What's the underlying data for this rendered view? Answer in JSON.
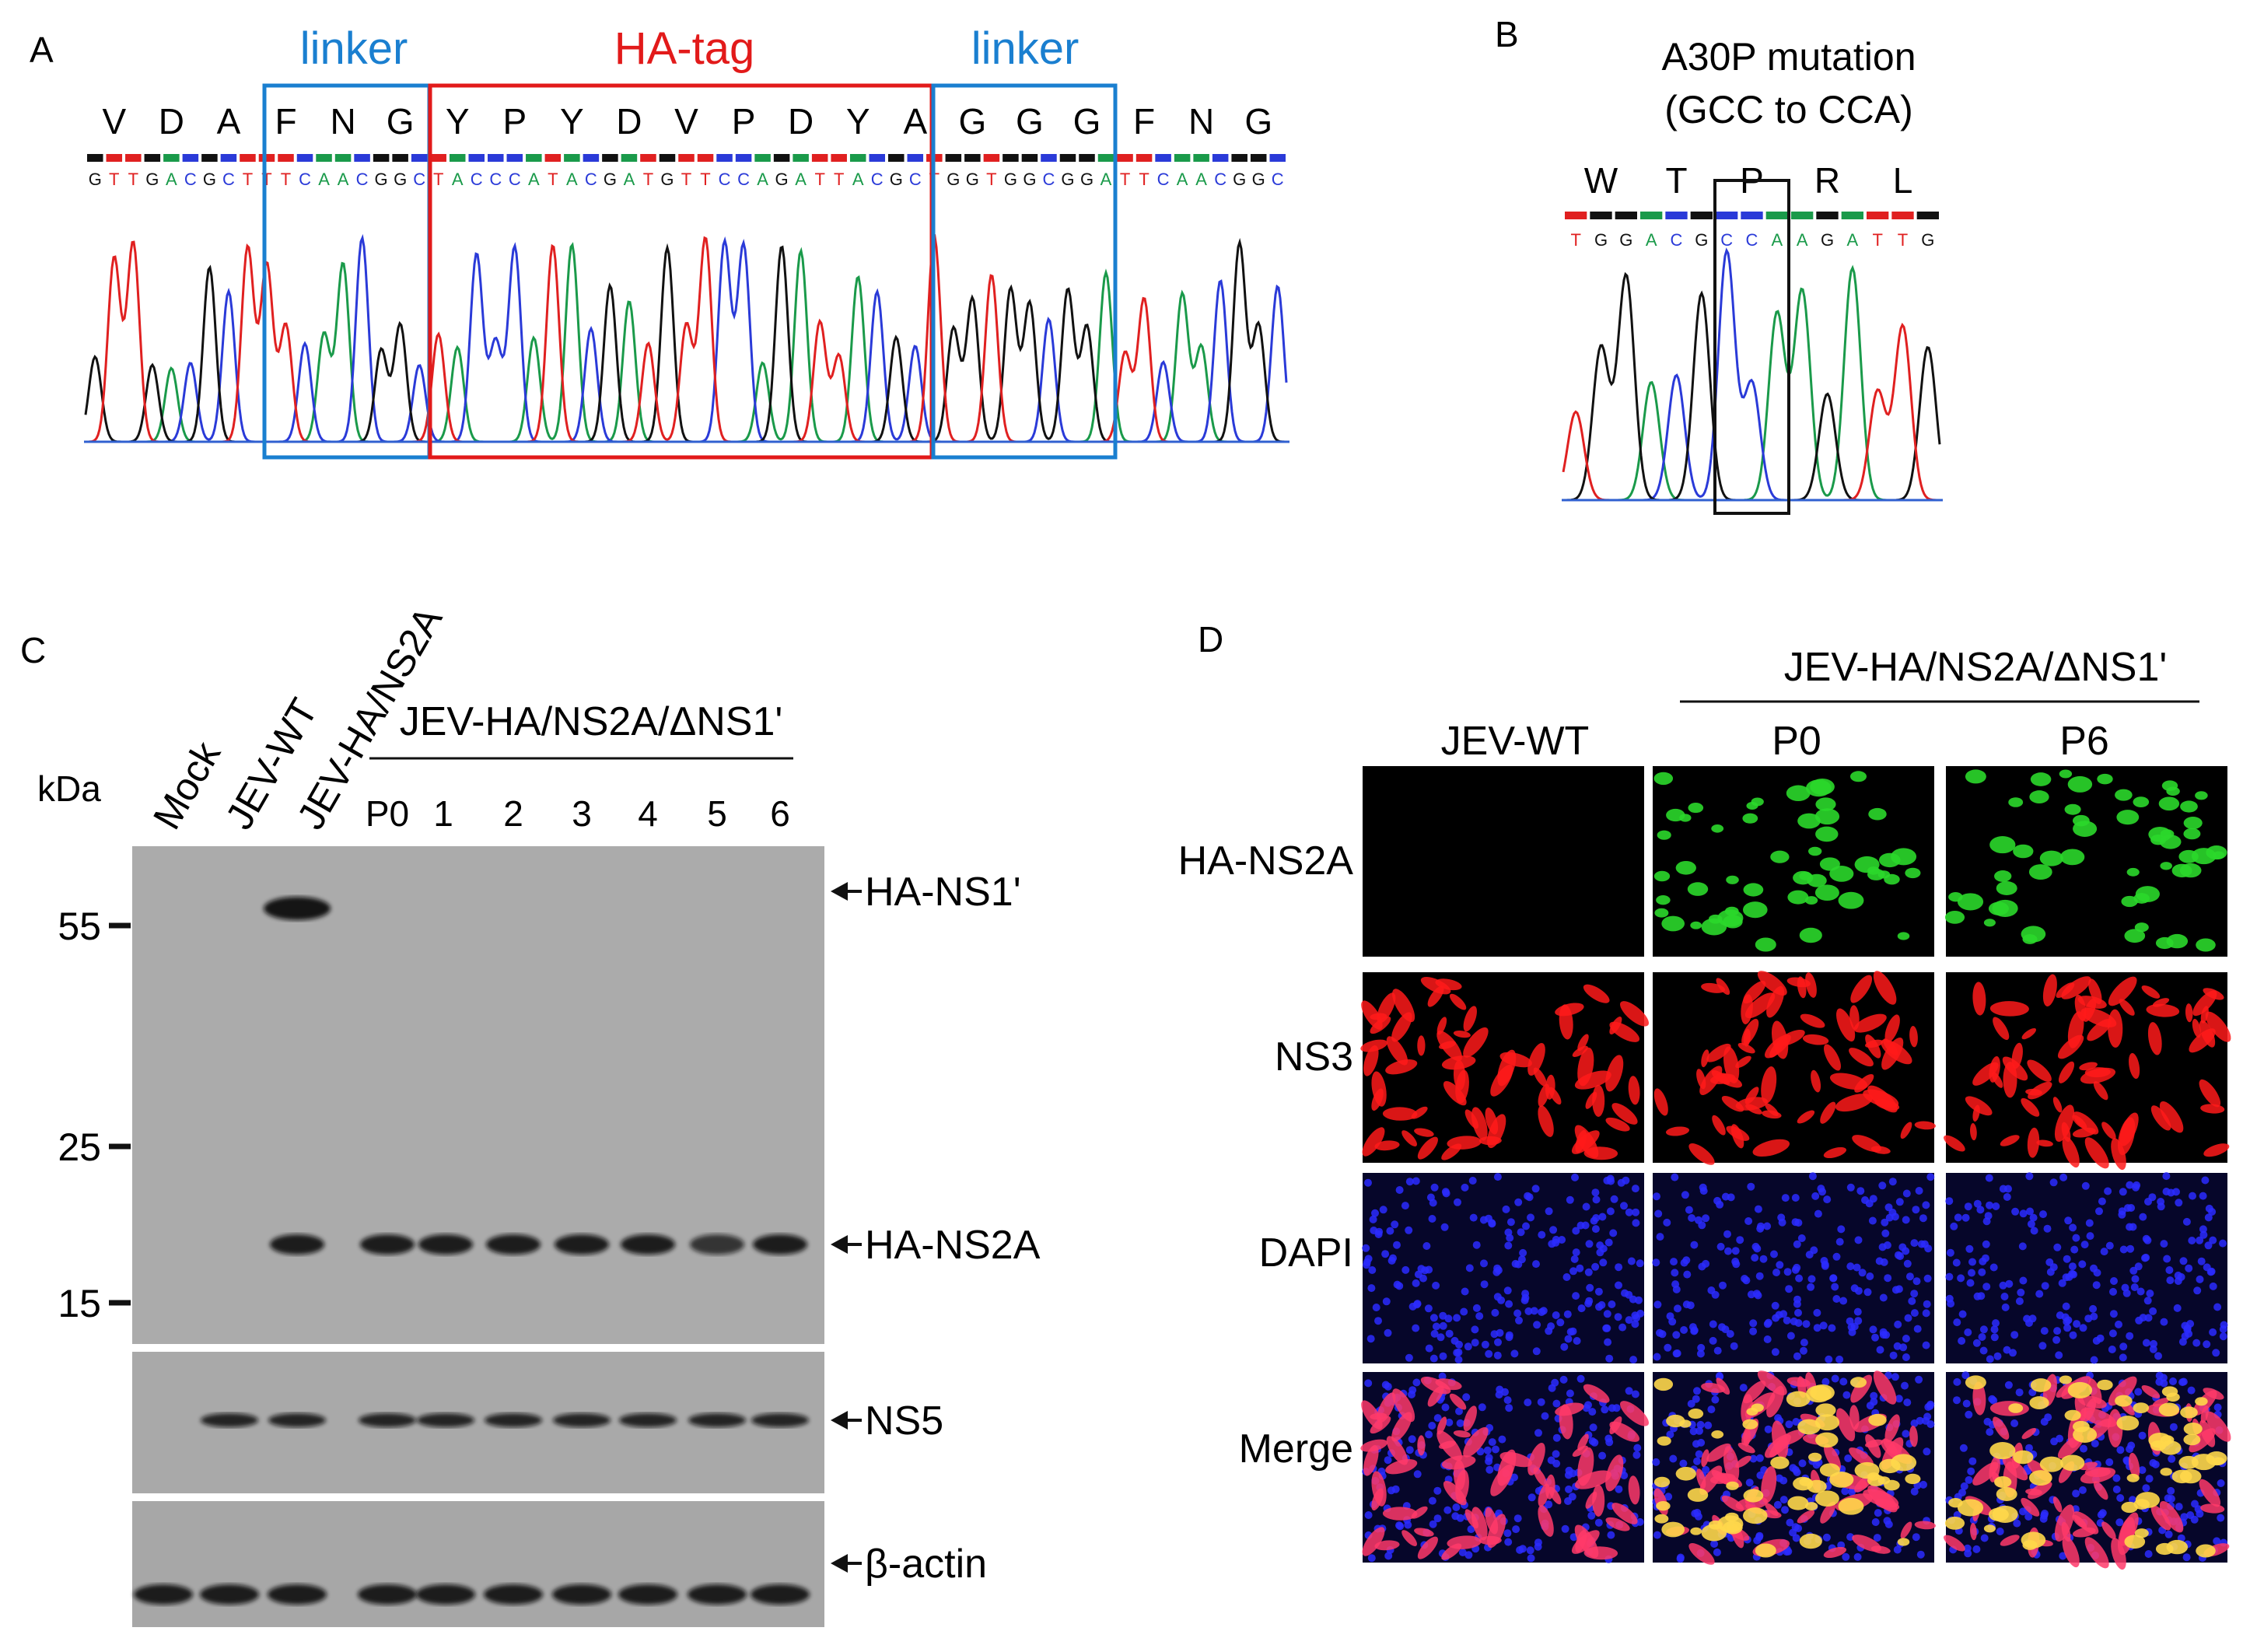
{
  "panels": {
    "a": {
      "label": "A",
      "linker_left": "linker",
      "hatag": "HA-tag",
      "linker_right": "linker",
      "amino_acids": [
        "V",
        "D",
        "A",
        "F",
        "N",
        "G",
        "Y",
        "P",
        "Y",
        "D",
        "V",
        "P",
        "D",
        "Y",
        "A",
        "G",
        "G",
        "G",
        "F",
        "N",
        "G"
      ],
      "bases": "GTTGACGCTTTCAACGGCTACCCATACGATGTTCCAGATTACGCTGGTGGCGGATTCAACGGC",
      "colors": {
        "linker": "#1a7fd0",
        "hatag": "#e21a1a"
      }
    },
    "b": {
      "label": "B",
      "title_line1": "A30P mutation",
      "title_line2": "(GCC to CCA)",
      "amino_acids": [
        "W",
        "T",
        "P",
        "R",
        "L"
      ],
      "bases": "TGGACGCCAAGATTG"
    },
    "c": {
      "label": "C",
      "kda": "kDa",
      "lanes_rot": [
        "Mock",
        "JEV-WT",
        "JEV-HA/NS2A"
      ],
      "group": "JEV-HA/NS2A/ΔNS1'",
      "passages": [
        "P0",
        "1",
        "2",
        "3",
        "4",
        "5",
        "6"
      ],
      "markers": [
        "55",
        "25",
        "15"
      ],
      "bands": [
        "HA-NS1'",
        "HA-NS2A",
        "NS5",
        "β-actin"
      ]
    },
    "d": {
      "label": "D",
      "group": "JEV-HA/NS2A/ΔNS1'",
      "columns": [
        "JEV-WT",
        "P0",
        "P6"
      ],
      "rows": [
        "HA-NS2A",
        "NS3",
        "DAPI",
        "Merge"
      ]
    }
  }
}
